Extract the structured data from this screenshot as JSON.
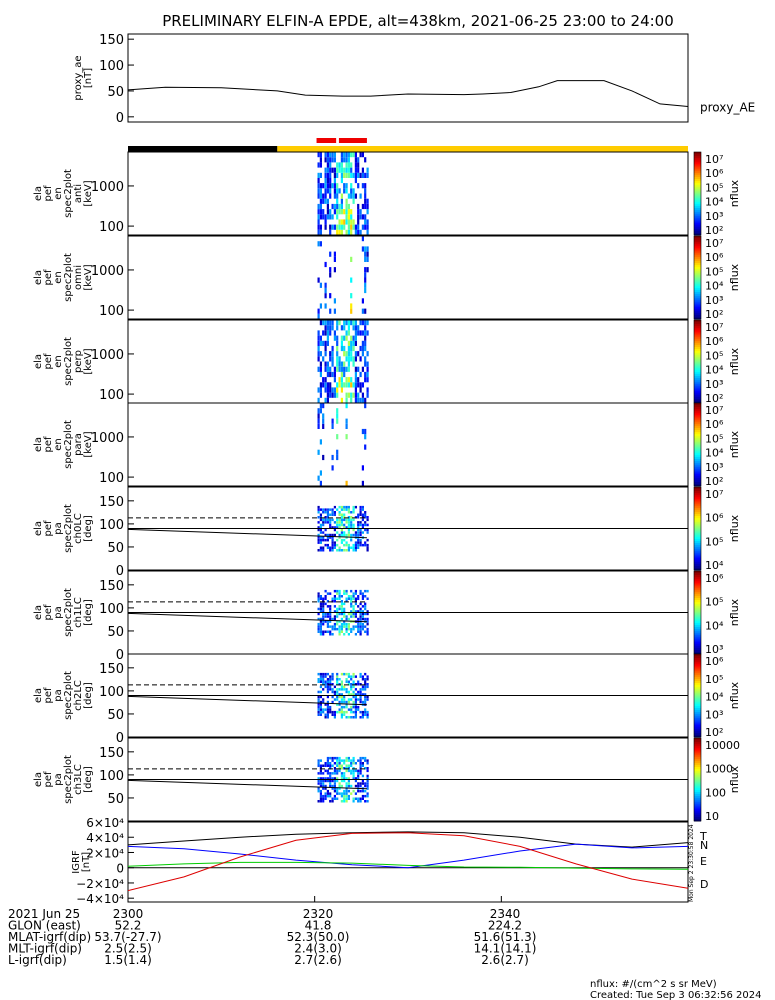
{
  "title": "PRELIMINARY ELFIN-A EPDE, alt=438km, 2021-06-25 23:00 to 24:00",
  "chart_data": [
    {
      "type": "line",
      "ylabel": "proxy_ae\n[nT]",
      "yticks": [
        "150",
        "100",
        "50",
        "0"
      ],
      "ylim": [
        -10,
        160
      ],
      "series": [
        {
          "name": "proxy_AE",
          "x": [
            2300,
            2304,
            2310,
            2316,
            2319,
            2323,
            2326,
            2330,
            2336,
            2338,
            2341,
            2344,
            2346,
            2349,
            2351,
            2354,
            2357,
            2360
          ],
          "y": [
            52,
            57,
            56,
            50,
            42,
            40,
            40,
            44,
            43,
            44,
            47,
            58,
            70,
            70,
            70,
            50,
            25,
            20
          ]
        }
      ],
      "color": "#000000"
    },
    {
      "type": "heatmap",
      "ylabel": "ela\npef\nen\nspec2plot\nanti\n[keV]",
      "yticks": [
        "1000",
        "100"
      ],
      "scale": "log",
      "ylim": [
        60,
        7000
      ]
    },
    {
      "type": "heatmap",
      "ylabel": "ela\npef\nen\nspec2plot\nomni\n[keV]",
      "yticks": [
        "1000",
        "100"
      ],
      "scale": "log",
      "ylim": [
        60,
        7000
      ]
    },
    {
      "type": "heatmap",
      "ylabel": "ela\npef\nen\nspec2plot\nperp\n[keV]",
      "yticks": [
        "1000",
        "100"
      ],
      "scale": "log",
      "ylim": [
        60,
        7000
      ]
    },
    {
      "type": "heatmap",
      "ylabel": "ela\npef\nen\nspec2plot\npara\n[keV]",
      "yticks": [
        "1000",
        "100"
      ],
      "scale": "log",
      "ylim": [
        60,
        7000
      ]
    },
    {
      "type": "heatmap",
      "ylabel": "ela\npef\npa\nspec2plot\nch0LC\n[deg]",
      "yticks": [
        "150",
        "100",
        "50",
        "0"
      ],
      "ylim": [
        0,
        180
      ]
    },
    {
      "type": "heatmap",
      "ylabel": "ela\npef\npa\nspec2plot\nch1LC\n[deg]",
      "yticks": [
        "150",
        "100",
        "50",
        "0"
      ],
      "ylim": [
        0,
        180
      ]
    },
    {
      "type": "heatmap",
      "ylabel": "ela\npef\npa\nspec2plot\nch2LC\n[deg]",
      "yticks": [
        "150",
        "100",
        "50",
        "0"
      ],
      "ylim": [
        0,
        180
      ]
    },
    {
      "type": "heatmap",
      "ylabel": "ela\npef\npa\nspec2plot\nch3LC\n[deg]",
      "yticks": [
        "150",
        "100",
        "50"
      ],
      "ylim": [
        0,
        180
      ]
    },
    {
      "type": "line",
      "ylabel": "IGRF\n[nT]",
      "yticks": [
        "6×10⁴",
        "4×10⁴",
        "2×10⁴",
        "0",
        "−2×10⁴",
        "−4×10⁴"
      ],
      "ylim": [
        -45000,
        60000
      ],
      "x": [
        2300,
        2306,
        2312,
        2318,
        2324,
        2330,
        2336,
        2342,
        2348,
        2354,
        2360
      ],
      "series": [
        {
          "name": "T",
          "color": "#000000",
          "y": [
            30000,
            35000,
            40000,
            44000,
            46000,
            47000,
            46000,
            40000,
            31000,
            27000,
            33000
          ]
        },
        {
          "name": "N",
          "color": "#0000ff",
          "y": [
            28000,
            25000,
            18000,
            10000,
            4000,
            0,
            10000,
            22000,
            31000,
            26000,
            28000
          ]
        },
        {
          "name": "E",
          "color": "#00cc00",
          "y": [
            2000,
            5000,
            7000,
            7000,
            6000,
            3000,
            1000,
            500,
            -500,
            -1500,
            -2000
          ]
        },
        {
          "name": "D",
          "color": "#dd0000",
          "y": [
            -30000,
            -12000,
            14000,
            36000,
            45000,
            46000,
            42000,
            28000,
            5000,
            -15000,
            -27000
          ]
        }
      ]
    }
  ],
  "colorbar_labels": [
    {
      "ticks": [
        "10⁷",
        "10⁶",
        "10⁵",
        "10⁴",
        "10³",
        "10²"
      ],
      "label": "nflux"
    },
    {
      "ticks": [
        "10⁷",
        "10⁶",
        "10⁵",
        "10⁴",
        "10³",
        "10²"
      ],
      "label": "nflux"
    },
    {
      "ticks": [
        "10⁷",
        "10⁶",
        "10⁵",
        "10⁴",
        "10³",
        "10²"
      ],
      "label": "nflux"
    },
    {
      "ticks": [
        "10⁷",
        "10⁶",
        "10⁵",
        "10⁴",
        "10³",
        "10²"
      ],
      "label": "nflux"
    },
    {
      "ticks": [
        "10⁷",
        "10⁶",
        "10⁵",
        "10⁴"
      ],
      "label": "nflux"
    },
    {
      "ticks": [
        "10⁶",
        "10⁵",
        "10⁴",
        "10³"
      ],
      "label": "nflux"
    },
    {
      "ticks": [
        "10⁶",
        "10⁵",
        "10⁴",
        "10³",
        "10²"
      ],
      "label": "nflux"
    },
    {
      "ticks": [
        "10000",
        "1000",
        "100",
        "10"
      ],
      "label": "nflux"
    }
  ],
  "status_bar": {
    "colors": [
      "#000000",
      "#ffcc00"
    ],
    "highlight": "#ee0000"
  },
  "footer": {
    "rows": [
      [
        "2021 Jun 25",
        "2300",
        "2320",
        "2340"
      ],
      [
        "GLON (east)",
        "52.2",
        "41.8",
        "224.2"
      ],
      [
        "MLAT-igrf(dip)",
        "53.7(-27.7)",
        "52.3(50.0)",
        "51.6(51.3)"
      ],
      [
        "MLT-igrf(dip)",
        "2.5(2.5)",
        "2.4(3.0)",
        "14.1(14.1)"
      ],
      [
        "L-igrf(dip)",
        "1.5(1.4)",
        "2.7(2.6)",
        "2.6(2.7)"
      ]
    ],
    "units": "nflux: #/(cm^2 s sr MeV)",
    "created": "Created: Tue Sep  3 06:32:56 2024",
    "side_stamp": "Mon Sep  2 23:30:58 2024"
  }
}
